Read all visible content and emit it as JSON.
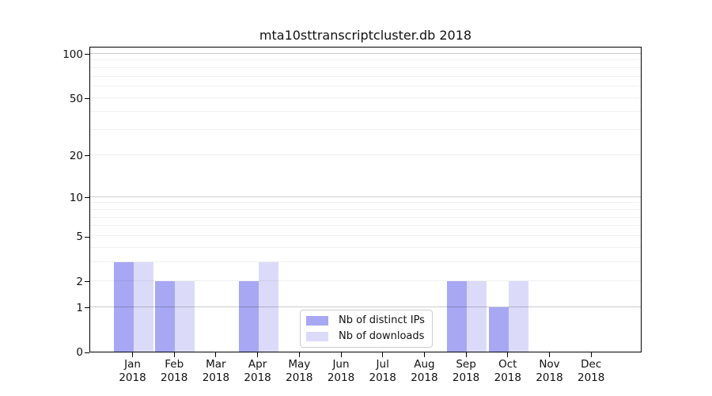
{
  "chart_data": {
    "type": "bar",
    "title": "mta10sttranscriptcluster.db 2018",
    "categories": [
      "Jan",
      "Feb",
      "Mar",
      "Apr",
      "May",
      "Jun",
      "Jul",
      "Aug",
      "Sep",
      "Oct",
      "Nov",
      "Dec"
    ],
    "x_tick_second_line": "2018",
    "series": [
      {
        "name": "Nb of distinct IPs",
        "color": "#a7a7f4",
        "values": [
          3,
          2,
          0,
          2,
          0,
          0,
          0,
          0,
          2,
          1,
          0,
          0
        ]
      },
      {
        "name": "Nb of downloads",
        "color": "#dbdbf9",
        "values": [
          3,
          2,
          0,
          3,
          0,
          0,
          0,
          0,
          2,
          2,
          0,
          0
        ]
      }
    ],
    "yscale": "log1p",
    "ylim": [
      0,
      113
    ],
    "yticks": [
      0,
      1,
      2,
      5,
      10,
      20,
      50,
      100
    ],
    "major_gridlines": [
      1,
      10,
      100
    ],
    "minor_gridlines": [
      2,
      3,
      4,
      5,
      6,
      7,
      8,
      9,
      20,
      30,
      40,
      50,
      60,
      70,
      80,
      90
    ],
    "grid": true,
    "legend_position": "lower center"
  },
  "colors": {
    "spine": "#000000",
    "text": "#111111",
    "legend_border": "#cccccc",
    "major_grid": "rgba(0,0,0,0.20)",
    "minor_grid": "rgba(0,0,0,0.06)"
  }
}
